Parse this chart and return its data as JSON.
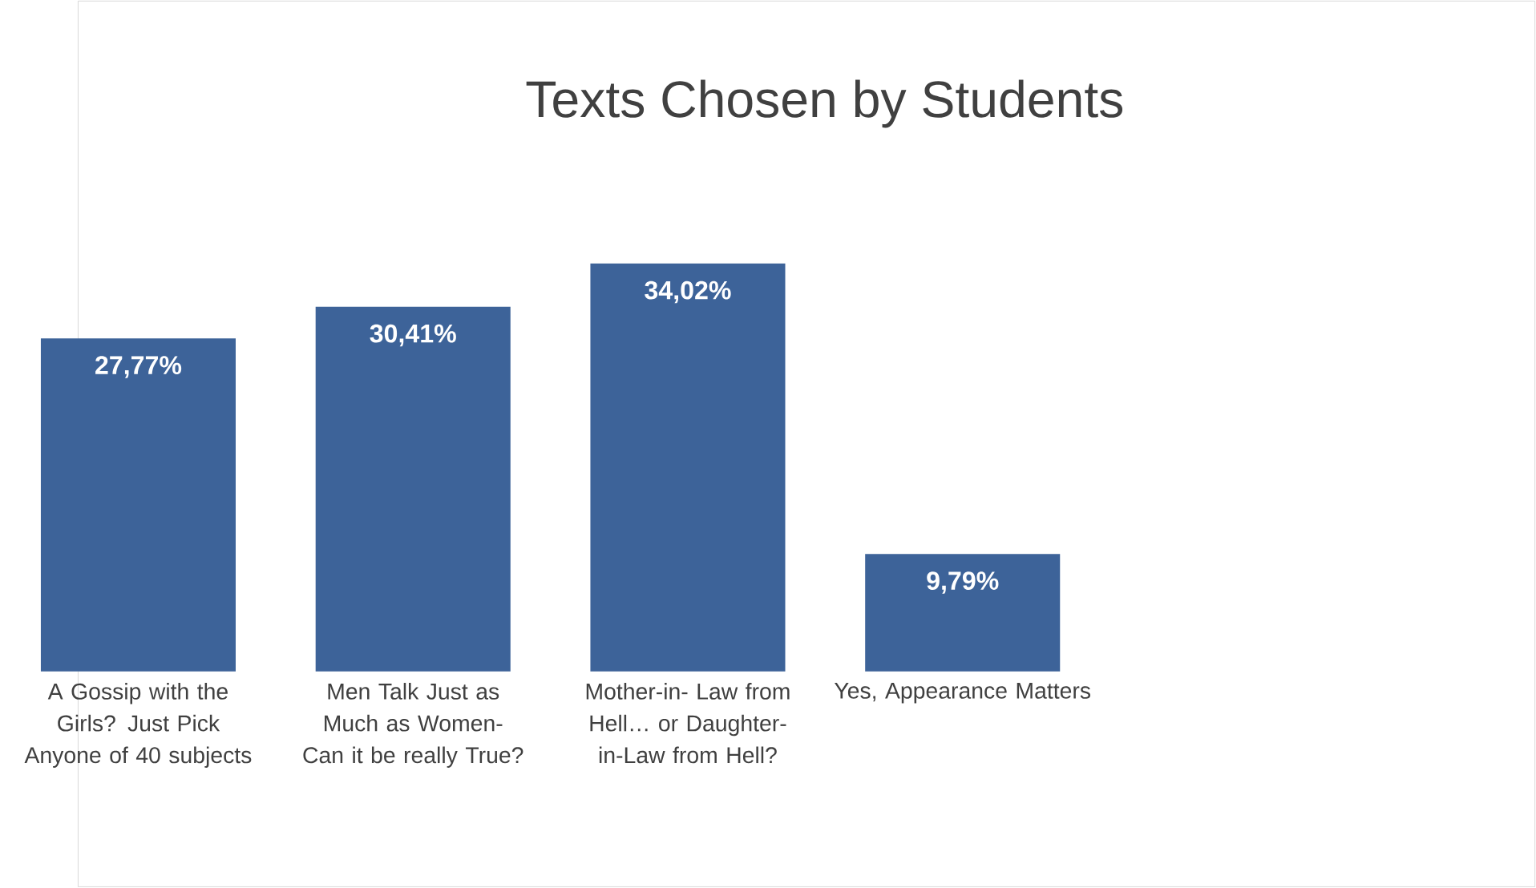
{
  "chart_data": {
    "type": "bar",
    "title": "Texts Chosen by Students",
    "categories": [
      "A Gossip with the Girls? Just Pick Anyone of 40 subjects",
      "Men Talk Just as Much as Women- Can it be really True?",
      "Mother-in- Law from Hell… or Daughter-in-Law from Hell?",
      "Yes, Appearance Matters"
    ],
    "values": [
      27.77,
      30.41,
      34.02,
      9.79
    ],
    "value_labels": [
      "27,77%",
      "30,41%",
      "34,02%",
      "9,79%"
    ],
    "color": "#3d6399"
  }
}
